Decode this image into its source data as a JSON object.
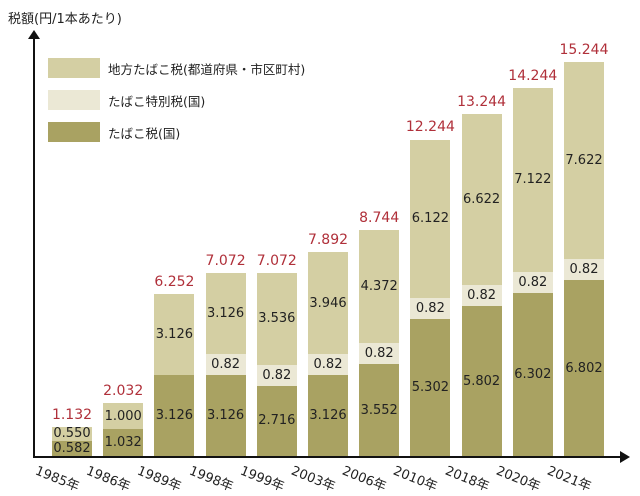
{
  "chart_data": {
    "type": "bar",
    "stacked": true,
    "title": "",
    "ylabel": "税額(円/1本あたり)",
    "xlabel": "",
    "categories": [
      "1985年",
      "1986年",
      "1989年",
      "1998年",
      "1999年",
      "2003年",
      "2006年",
      "2010年",
      "2018年",
      "2020年",
      "2021年"
    ],
    "series": [
      {
        "name": "たばこ税(国)",
        "color": "#a9a262",
        "values": [
          0.582,
          1.032,
          3.126,
          3.126,
          2.716,
          3.126,
          3.552,
          5.302,
          5.802,
          6.302,
          6.802
        ]
      },
      {
        "name": "たばこ特別税(国)",
        "color": "#ebe8d5",
        "values": [
          null,
          null,
          null,
          0.82,
          0.82,
          0.82,
          0.82,
          0.82,
          0.82,
          0.82,
          0.82
        ]
      },
      {
        "name": "地方たばこ税(都道府県・市区町村)",
        "color": "#d4cfa3",
        "values": [
          0.55,
          1.0,
          3.126,
          3.126,
          3.536,
          3.946,
          4.372,
          6.122,
          6.622,
          7.122,
          7.622
        ]
      }
    ],
    "segment_labels": [
      [
        "0.582",
        "1.032",
        "3.126",
        "3.126",
        "2.716",
        "3.126",
        "3.552",
        "5.302",
        "5.802",
        "6.302",
        "6.802"
      ],
      [
        "",
        "",
        "",
        "0.82",
        "0.82",
        "0.82",
        "0.82",
        "0.82",
        "0.82",
        "0.82",
        "0.82"
      ],
      [
        "0.550",
        "1.000",
        "3.126",
        "3.126",
        "3.536",
        "3.946",
        "4.372",
        "6.122",
        "6.622",
        "7.122",
        "7.622"
      ]
    ],
    "totals": [
      "1.132",
      "2.032",
      "6.252",
      "7.072",
      "7.072",
      "7.892",
      "8.744",
      "12.244",
      "13.244",
      "14.244",
      "15.244"
    ],
    "total_values": [
      1.132,
      2.032,
      6.252,
      7.072,
      7.072,
      7.892,
      8.744,
      12.244,
      13.244,
      14.244,
      15.244
    ],
    "ylim": [
      0,
      16
    ],
    "grid": false,
    "legend_position": "top-left",
    "total_label_color": "#b0303a"
  },
  "legend": {
    "items": [
      {
        "label": "地方たばこ税(都道府県・市区町村)",
        "color": "#d4cfa3"
      },
      {
        "label": "たばこ特別税(国)",
        "color": "#ebe8d5"
      },
      {
        "label": "たばこ税(国)",
        "color": "#a9a262"
      }
    ]
  }
}
